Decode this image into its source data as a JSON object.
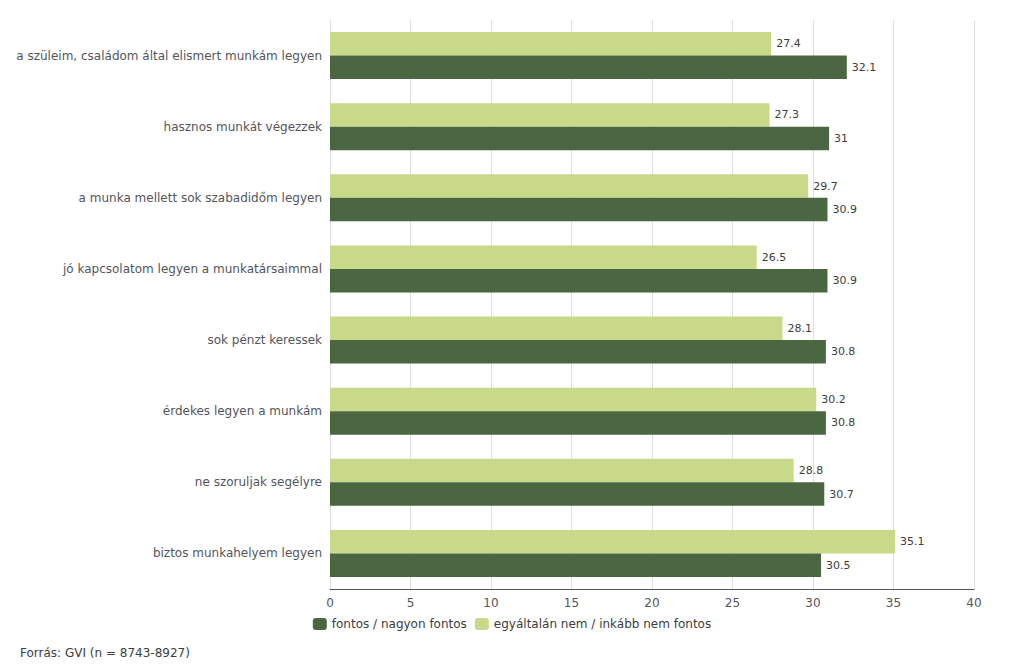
{
  "chart_data": {
    "type": "bar",
    "orientation": "horizontal",
    "categories": [
      "biztos munkahelyem legyen",
      "ne szoruljak segélyre",
      "érdekes legyen a munkám",
      "sok pénzt keressek",
      "jó kapcsolatom legyen a munkatársaimmal",
      "a munka mellett sok szabadidőm legyen",
      "hasznos munkát végezzek",
      "a szüleim, családom által elismert munkám legyen"
    ],
    "series": [
      {
        "name": "fontos / nagyon fontos",
        "color": "#4a6741",
        "values": [
          30.5,
          30.7,
          30.8,
          30.8,
          30.9,
          30.9,
          31.0,
          32.1
        ]
      },
      {
        "name": "egyáltalán nem / inkább nem fontos",
        "color": "#c8d98a",
        "values": [
          35.1,
          28.8,
          30.2,
          28.1,
          26.5,
          29.7,
          27.3,
          27.4
        ]
      }
    ],
    "xlim": [
      0,
      40
    ],
    "xticks": [
      0,
      5,
      10,
      15,
      20,
      25,
      30,
      35,
      40
    ],
    "grid": true,
    "legend": "bottom",
    "data_labels": true,
    "annotations": [
      "Forrás: GVI (n = 8743-8927)"
    ]
  }
}
